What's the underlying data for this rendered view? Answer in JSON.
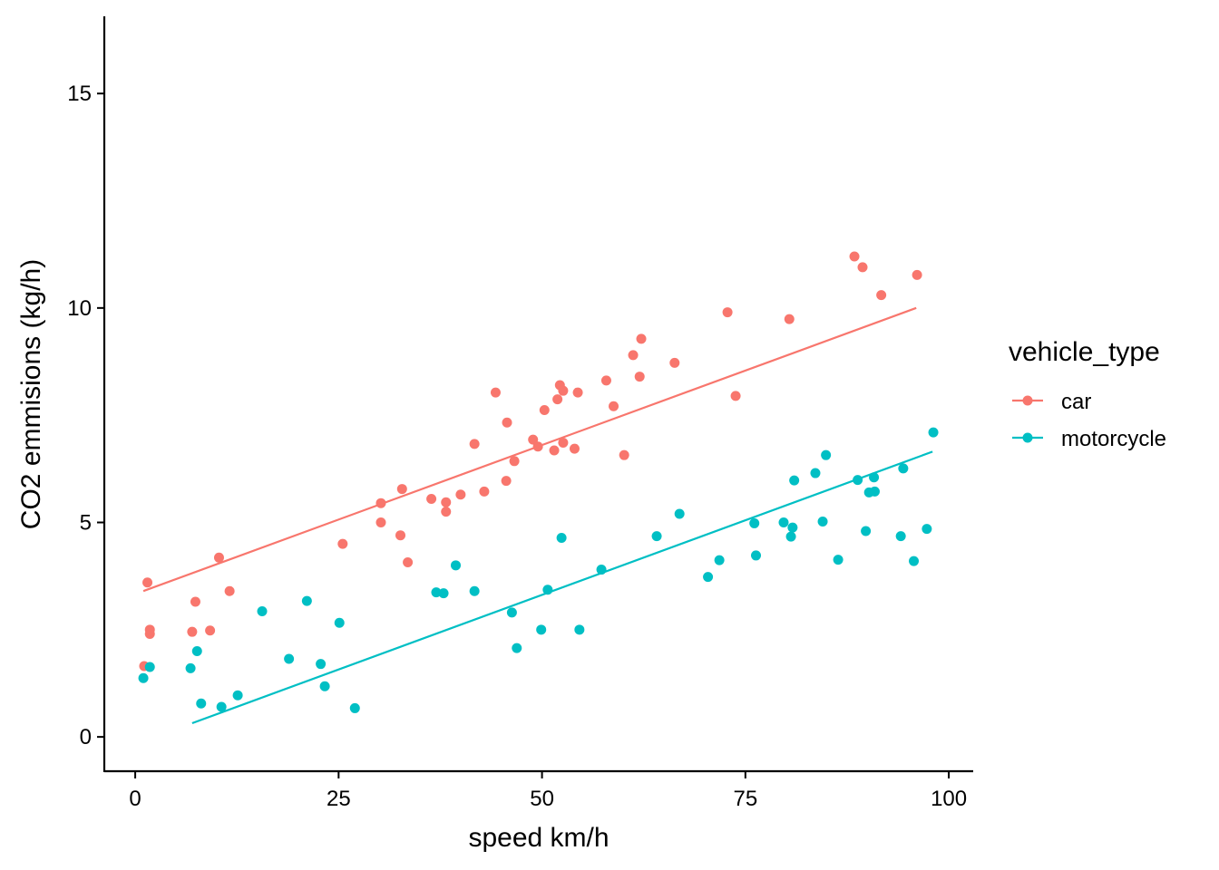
{
  "chart_data": {
    "type": "scatter",
    "title": "",
    "xlabel": "speed km/h",
    "ylabel": "CO2 emmisions (kg/h)",
    "xlim": [
      -3.8,
      103.0
    ],
    "ylim": [
      -0.8,
      16.8
    ],
    "xticks": [
      0,
      25,
      50,
      75,
      100
    ],
    "yticks": [
      0,
      5,
      10,
      15
    ],
    "grid": false,
    "legend": {
      "title": "vehicle_type",
      "position": "right"
    },
    "series": [
      {
        "name": "car",
        "color": "#F8766D",
        "points": [
          [
            1.1,
            1.65
          ],
          [
            1.5,
            3.6
          ],
          [
            1.8,
            2.4
          ],
          [
            1.8,
            2.5
          ],
          [
            7.0,
            2.45
          ],
          [
            7.4,
            3.15
          ],
          [
            9.2,
            2.48
          ],
          [
            10.3,
            4.18
          ],
          [
            11.6,
            3.4
          ],
          [
            25.5,
            4.5
          ],
          [
            30.2,
            5.45
          ],
          [
            30.2,
            5.0
          ],
          [
            32.6,
            4.7
          ],
          [
            32.8,
            5.78
          ],
          [
            33.5,
            4.07
          ],
          [
            36.4,
            5.55
          ],
          [
            38.2,
            5.47
          ],
          [
            38.2,
            5.25
          ],
          [
            40.0,
            5.65
          ],
          [
            41.7,
            6.83
          ],
          [
            42.9,
            5.72
          ],
          [
            44.3,
            8.03
          ],
          [
            45.6,
            5.97
          ],
          [
            45.7,
            7.33
          ],
          [
            46.6,
            6.43
          ],
          [
            48.9,
            6.93
          ],
          [
            49.5,
            6.77
          ],
          [
            50.3,
            7.62
          ],
          [
            51.5,
            6.68
          ],
          [
            51.9,
            7.87
          ],
          [
            52.2,
            8.2
          ],
          [
            52.6,
            6.86
          ],
          [
            52.6,
            8.07
          ],
          [
            54.0,
            6.72
          ],
          [
            54.4,
            8.03
          ],
          [
            57.9,
            8.31
          ],
          [
            58.8,
            7.71
          ],
          [
            60.1,
            6.57
          ],
          [
            61.2,
            8.9
          ],
          [
            62.0,
            8.4
          ],
          [
            62.2,
            9.28
          ],
          [
            66.3,
            8.72
          ],
          [
            72.8,
            9.9
          ],
          [
            73.8,
            7.95
          ],
          [
            80.4,
            9.74
          ],
          [
            88.4,
            11.2
          ],
          [
            89.4,
            10.95
          ],
          [
            91.7,
            10.3
          ],
          [
            96.1,
            10.77
          ]
        ],
        "fit": [
          [
            1.0,
            3.4
          ],
          [
            96.0,
            10.0
          ]
        ]
      },
      {
        "name": "motorcycle",
        "color": "#00BFC4",
        "points": [
          [
            1.0,
            1.37
          ],
          [
            1.8,
            1.63
          ],
          [
            6.8,
            1.6
          ],
          [
            7.6,
            2.0
          ],
          [
            8.1,
            0.78
          ],
          [
            10.6,
            0.7
          ],
          [
            12.6,
            0.97
          ],
          [
            15.6,
            2.93
          ],
          [
            18.9,
            1.82
          ],
          [
            21.1,
            3.17
          ],
          [
            22.8,
            1.7
          ],
          [
            23.3,
            1.18
          ],
          [
            25.1,
            2.66
          ],
          [
            27.0,
            0.67
          ],
          [
            37.0,
            3.37
          ],
          [
            37.9,
            3.35
          ],
          [
            39.4,
            4.0
          ],
          [
            41.7,
            3.4
          ],
          [
            46.3,
            2.9
          ],
          [
            46.9,
            2.07
          ],
          [
            49.9,
            2.5
          ],
          [
            50.7,
            3.43
          ],
          [
            52.4,
            4.64
          ],
          [
            54.6,
            2.5
          ],
          [
            57.3,
            3.9
          ],
          [
            64.1,
            4.68
          ],
          [
            66.9,
            5.2
          ],
          [
            70.4,
            3.73
          ],
          [
            71.8,
            4.12
          ],
          [
            76.1,
            4.98
          ],
          [
            76.3,
            4.23
          ],
          [
            79.7,
            5.0
          ],
          [
            80.6,
            4.67
          ],
          [
            80.8,
            4.88
          ],
          [
            81.0,
            5.98
          ],
          [
            83.6,
            6.15
          ],
          [
            84.5,
            5.02
          ],
          [
            84.9,
            6.57
          ],
          [
            86.4,
            4.13
          ],
          [
            88.8,
            5.99
          ],
          [
            89.8,
            4.8
          ],
          [
            90.2,
            5.7
          ],
          [
            90.8,
            6.05
          ],
          [
            90.9,
            5.72
          ],
          [
            94.1,
            4.68
          ],
          [
            94.4,
            6.26
          ],
          [
            95.7,
            4.1
          ],
          [
            97.3,
            4.85
          ],
          [
            98.1,
            7.1
          ]
        ],
        "fit": [
          [
            7.0,
            0.32
          ],
          [
            98.0,
            6.65
          ]
        ]
      }
    ]
  }
}
